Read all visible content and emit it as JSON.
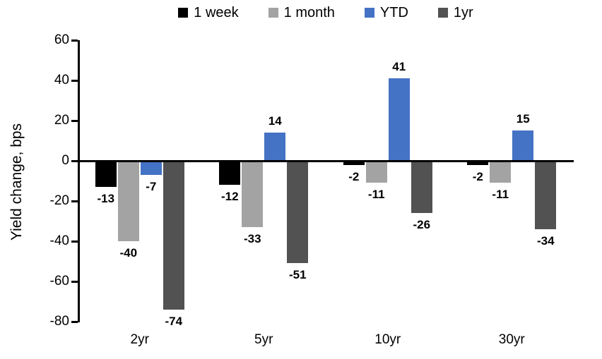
{
  "chart_data": {
    "type": "bar",
    "ylabel": "Yield change, bps",
    "categories": [
      "2yr",
      "5yr",
      "10yr",
      "30yr"
    ],
    "series": [
      {
        "name": "1 week",
        "color": "#000000",
        "values": [
          -13,
          -12,
          -2,
          -2
        ]
      },
      {
        "name": "1 month",
        "color": "#a3a3a3",
        "values": [
          -40,
          -33,
          -11,
          -11
        ]
      },
      {
        "name": "YTD",
        "color": "#4472c4",
        "values": [
          -7,
          14,
          41,
          15
        ]
      },
      {
        "name": "1yr",
        "color": "#525252",
        "values": [
          -74,
          -51,
          -26,
          -34
        ]
      }
    ],
    "yticks": [
      60,
      40,
      20,
      0,
      -20,
      -40,
      -60,
      -80
    ],
    "ylim": [
      -80,
      60
    ],
    "legend_position": "top",
    "grid": false,
    "axis_color": "#000000"
  }
}
